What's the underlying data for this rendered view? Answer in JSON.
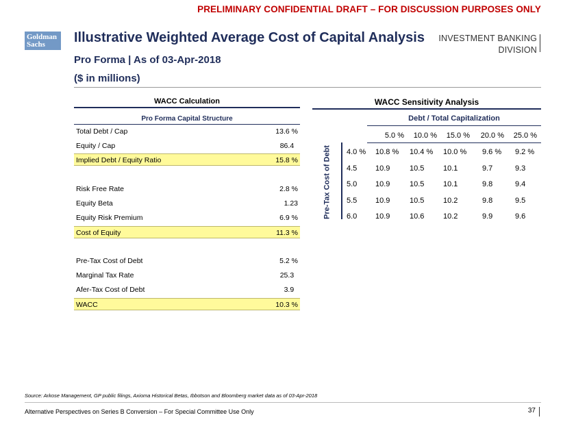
{
  "header": {
    "draft_banner": "PRELIMINARY CONFIDENTIAL DRAFT – FOR DISCUSSION PURPOSES ONLY",
    "logo_line1": "Goldman",
    "logo_line2": "Sachs",
    "title": "Illustrative Weighted Average Cost of Capital Analysis",
    "subtitle": "Pro Forma | As of 03-Apr-2018",
    "unit_note": "($ in millions)",
    "division_line1": "INVESTMENT BANKING",
    "division_line2": "DIVISION"
  },
  "wacc_calc": {
    "title": "WACC Calculation",
    "subtitle": "Pro Forma Capital Structure",
    "rows": [
      {
        "label": "Total Debt / Cap",
        "value": "13.6 %"
      },
      {
        "label": "Equity / Cap",
        "value": "86.4  "
      },
      {
        "label": "Implied Debt / Equity Ratio",
        "value": "15.8 %"
      },
      {
        "label": "Risk Free Rate",
        "value": "2.8 %"
      },
      {
        "label": "Equity Beta",
        "value": "1.23"
      },
      {
        "label": "Equity Risk Premium",
        "value": "6.9 %"
      },
      {
        "label": "Cost of Equity",
        "value": "11.3 %"
      },
      {
        "label": "Pre-Tax Cost of Debt",
        "value": "5.2 %"
      },
      {
        "label": "Marginal Tax Rate",
        "value": "25.3  "
      },
      {
        "label": "Afer-Tax Cost of Debt",
        "value": "3.9  "
      },
      {
        "label": "WACC",
        "value": "10.3 %"
      }
    ]
  },
  "sensitivity": {
    "title": "WACC Sensitivity Analysis",
    "col_axis_label": "Debt / Total Capitalization",
    "row_axis_label": "Pre-Tax Cost of Debt",
    "columns": [
      "5.0 %",
      "10.0 %",
      "15.0 %",
      "20.0 %",
      "25.0 %"
    ],
    "rows": [
      {
        "header": "4.0 %",
        "values": [
          "10.8 %",
          "10.4 %",
          "10.0 %",
          "9.6 %",
          "9.2 %"
        ]
      },
      {
        "header": "4.5",
        "values": [
          "10.9",
          "10.5",
          "10.1",
          "9.7",
          "9.3"
        ]
      },
      {
        "header": "5.0",
        "values": [
          "10.9",
          "10.5",
          "10.1",
          "9.8",
          "9.4"
        ]
      },
      {
        "header": "5.5",
        "values": [
          "10.9",
          "10.5",
          "10.2",
          "9.8",
          "9.5"
        ]
      },
      {
        "header": "6.0",
        "values": [
          "10.9",
          "10.6",
          "10.2",
          "9.9",
          "9.6"
        ]
      }
    ]
  },
  "footer": {
    "source": "Source: Arkose Management, GP public filings, Axioma Historical Betas, Ibbotson and Bloomberg market data as of 03-Apr-2018",
    "left_text": "Alternative Perspectives on Series B Conversion – For Special Committee Use Only",
    "page_number": "37"
  }
}
